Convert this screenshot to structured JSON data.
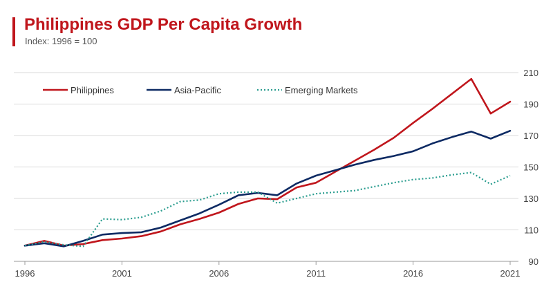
{
  "header": {
    "title": "Philippines GDP Per Capita Growth",
    "subtitle": "Index: 1996 = 100"
  },
  "colors": {
    "accent": "#c0161c",
    "philippines": "#c0161c",
    "asia_pacific": "#0d2a63",
    "emerging_markets": "#2a9d8f",
    "grid": "#d9d9d9"
  },
  "chart_data": {
    "type": "line",
    "x": [
      1996,
      1997,
      1998,
      1999,
      2000,
      2001,
      2002,
      2003,
      2004,
      2005,
      2006,
      2007,
      2008,
      2009,
      2010,
      2011,
      2012,
      2013,
      2014,
      2015,
      2016,
      2017,
      2018,
      2019,
      2020,
      2021
    ],
    "xticks": [
      1996,
      2001,
      2006,
      2011,
      2016,
      2021
    ],
    "yticks": [
      90,
      110,
      130,
      150,
      170,
      190,
      210
    ],
    "xlim": [
      1996,
      2021
    ],
    "ylim": [
      90,
      210
    ],
    "grid": "horizontal",
    "legend_position": "top-left",
    "series": [
      {
        "name": "Philippines",
        "key": "philippines",
        "style": "solid",
        "values": [
          100,
          103,
          100,
          101,
          103.5,
          104.5,
          106,
          109,
          113.5,
          117,
          121,
          126.5,
          130,
          129.5,
          137,
          140,
          147,
          154,
          161,
          168.5,
          178,
          187,
          196.5,
          206,
          184,
          191.5
        ]
      },
      {
        "name": "Asia-Pacific",
        "key": "asia_pacific",
        "style": "solid",
        "values": [
          100,
          101.5,
          99.5,
          103,
          107,
          108,
          108.5,
          111.5,
          116,
          120.5,
          126,
          132,
          133.5,
          132,
          139.5,
          144.5,
          148,
          151.5,
          154.5,
          157,
          160,
          165,
          169,
          172.5,
          168,
          173
        ]
      },
      {
        "name": "Emerging Markets",
        "key": "emerging_markets",
        "style": "dotted",
        "values": [
          100,
          102.5,
          100.5,
          99.5,
          117,
          116.5,
          118,
          122,
          128,
          129,
          133,
          134,
          134,
          127,
          130,
          133,
          134,
          135,
          137.5,
          140,
          142,
          143,
          145,
          146.5,
          139,
          144.5
        ]
      }
    ]
  }
}
